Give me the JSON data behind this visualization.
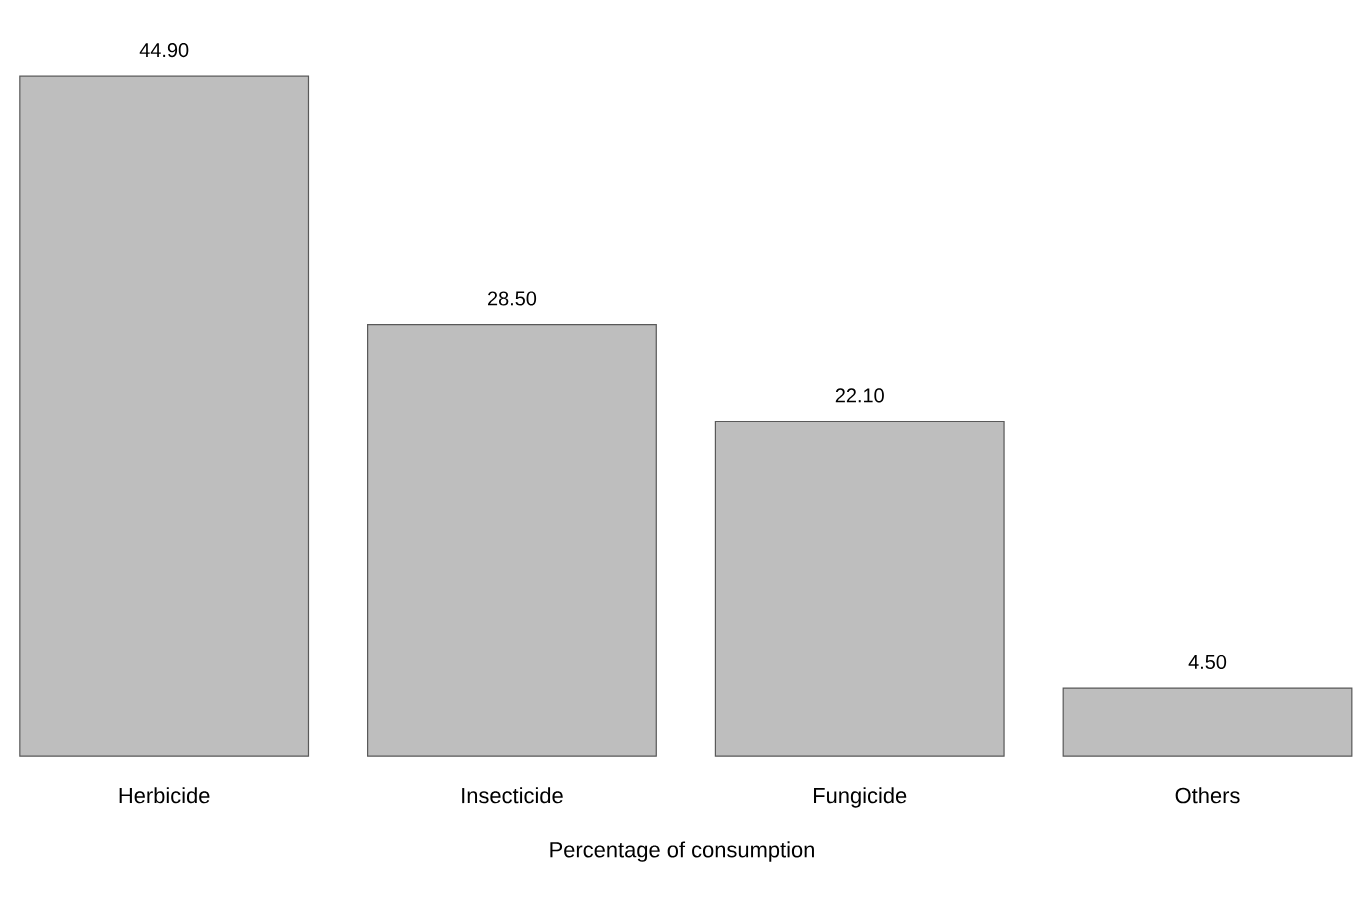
{
  "chart_data": {
    "type": "bar",
    "xlabel": "Percentage of consumption",
    "categories": [
      "Herbicide",
      "Insecticide",
      "Fungicide",
      "Others"
    ],
    "values": [
      44.9,
      28.5,
      22.1,
      4.5
    ],
    "value_labels": [
      "44.90",
      "28.50",
      "22.10",
      "4.50"
    ],
    "color": "#bebebe"
  }
}
